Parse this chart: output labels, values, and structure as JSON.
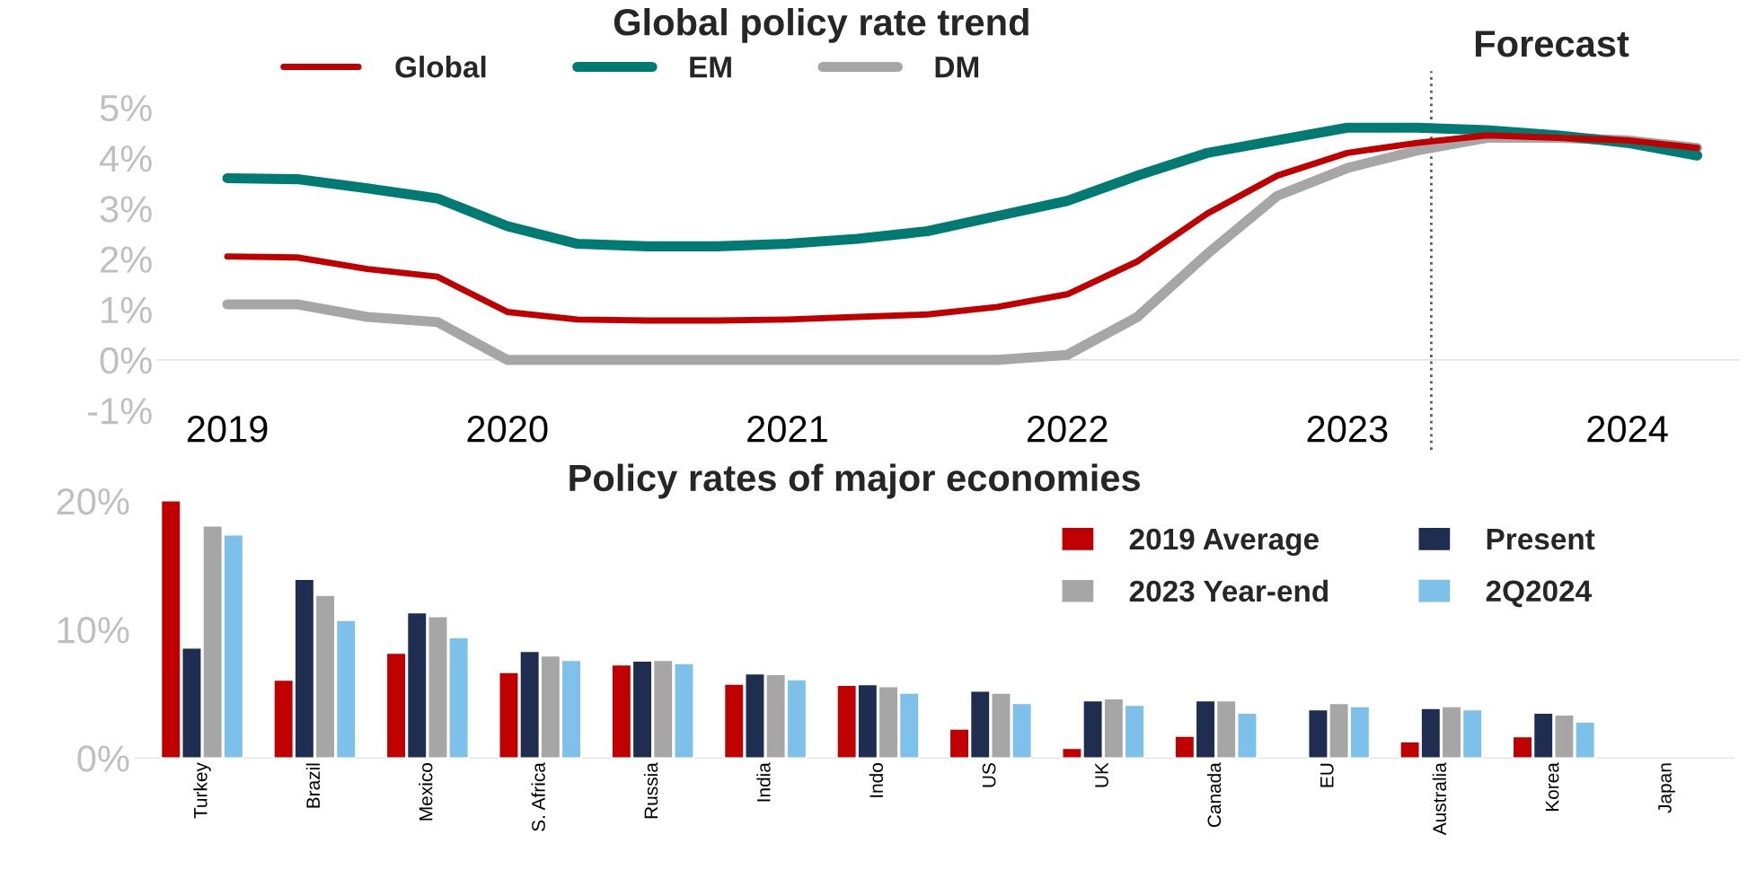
{
  "chart_data": [
    {
      "type": "line",
      "title": "Global policy rate trend",
      "x": [
        2019,
        2019.25,
        2019.5,
        2019.75,
        2020,
        2020.25,
        2020.5,
        2020.75,
        2021,
        2021.25,
        2021.5,
        2021.75,
        2022,
        2022.25,
        2022.5,
        2022.75,
        2023,
        2023.25,
        2023.5,
        2023.75,
        2024,
        2024.25
      ],
      "series": [
        {
          "name": "Global",
          "color": "#c00000",
          "values": [
            2.05,
            2.03,
            1.8,
            1.65,
            0.95,
            0.8,
            0.78,
            0.78,
            0.8,
            0.85,
            0.9,
            1.05,
            1.3,
            1.95,
            2.9,
            3.65,
            4.1,
            4.3,
            4.45,
            4.4,
            4.35,
            4.2
          ]
        },
        {
          "name": "EM",
          "color": "#007b73",
          "values": [
            3.6,
            3.58,
            3.4,
            3.2,
            2.65,
            2.3,
            2.25,
            2.25,
            2.3,
            2.4,
            2.55,
            2.85,
            3.15,
            3.65,
            4.1,
            4.35,
            4.6,
            4.6,
            4.55,
            4.45,
            4.3,
            4.05
          ]
        },
        {
          "name": "DM",
          "color": "#a6a6a6",
          "values": [
            1.1,
            1.1,
            0.85,
            0.75,
            0,
            0,
            0,
            0,
            0,
            0,
            0,
            0,
            0.1,
            0.85,
            2.1,
            3.25,
            3.8,
            4.15,
            4.4,
            4.4,
            4.35,
            4.2
          ]
        }
      ],
      "xlim": [
        2018.75,
        2024.4
      ],
      "xticks": [
        2019,
        2020,
        2021,
        2022,
        2023,
        2024
      ],
      "ylim": [
        -1,
        5
      ],
      "yticks": [
        {
          "value": -1,
          "label": "-1%"
        },
        {
          "value": 0,
          "label": "0%"
        },
        {
          "value": 1,
          "label": "1%"
        },
        {
          "value": 2,
          "label": "2%"
        },
        {
          "value": 3,
          "label": "3%"
        },
        {
          "value": 4,
          "label": "4%"
        },
        {
          "value": 5,
          "label": "5%"
        }
      ],
      "ref_lines": [
        {
          "axis": "x",
          "value": 2023.3,
          "label": "Forecast",
          "color": "#595959",
          "line_style": "dotted"
        }
      ],
      "legend": "top",
      "grid": false
    },
    {
      "type": "bar",
      "title": "Policy rates of major economies",
      "categories": [
        "Turkey",
        "Brazil",
        "Mexico",
        "S. Africa",
        "Russia",
        "India",
        "Indo",
        "US",
        "UK",
        "Canada",
        "EU",
        "Australia",
        "Korea",
        "Japan"
      ],
      "series": [
        {
          "name": "2019 Average",
          "color": "#c00000",
          "values": [
            20.0,
            6.05,
            8.15,
            6.65,
            7.25,
            5.75,
            5.65,
            2.25,
            0.75,
            1.7,
            null,
            1.25,
            1.65,
            null
          ]
        },
        {
          "name": "Present",
          "color": "#1f2d50",
          "values": [
            8.55,
            13.9,
            11.3,
            8.3,
            7.55,
            6.55,
            5.7,
            5.2,
            4.45,
            4.45,
            3.75,
            3.85,
            3.5,
            null
          ]
        },
        {
          "name": "2023 Year-end",
          "color": "#a6a6a6",
          "values": [
            18.05,
            12.65,
            11.0,
            7.95,
            7.6,
            6.5,
            5.55,
            5.05,
            4.6,
            4.45,
            4.25,
            4.0,
            3.35,
            null
          ]
        },
        {
          "name": "2Q2024",
          "color": "#7dc0ea",
          "values": [
            17.35,
            10.7,
            9.35,
            7.6,
            7.35,
            6.1,
            5.05,
            4.25,
            4.1,
            3.5,
            4.0,
            3.75,
            2.8,
            null
          ]
        }
      ],
      "ylim": [
        0,
        20
      ],
      "yticks": [
        {
          "value": 0,
          "label": "0%"
        },
        {
          "value": 10,
          "label": "10%"
        },
        {
          "value": 20,
          "label": "20%"
        }
      ],
      "legend": "top right",
      "grid": false
    }
  ]
}
